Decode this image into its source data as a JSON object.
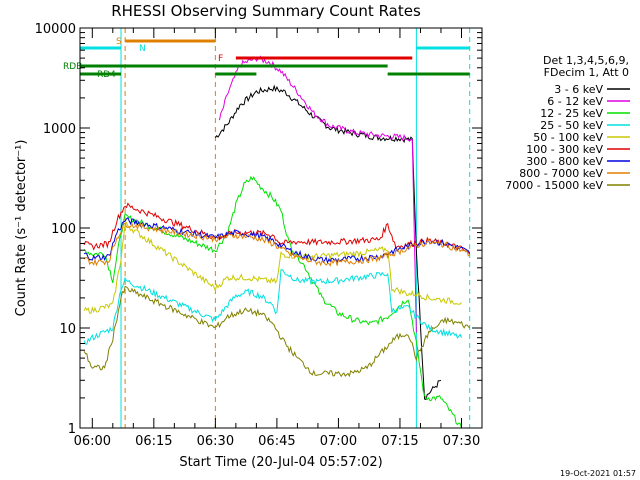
{
  "chart_data": {
    "type": "line",
    "title": "RHESSI Observing Summary Count Rates",
    "xlabel": "Start Time (20-Jul-04 05:57:02)",
    "ylabel": "Count Rate (s⁻¹ detector⁻¹)",
    "x_range_minutes": [
      "05:57",
      "07:35"
    ],
    "ylim": [
      1,
      10000
    ],
    "y_scale": "log",
    "x_ticks": [
      "06:00",
      "06:15",
      "06:30",
      "06:45",
      "07:00",
      "07:15",
      "07:30"
    ],
    "y_ticks": [
      "1",
      "10",
      "100",
      "1000",
      "10000"
    ],
    "legend": {
      "placement": "right",
      "header": [
        "Det 1,3,4,5,6,9,",
        "FDecim 1, Att 0"
      ],
      "entries": [
        {
          "label": "3 - 6 keV",
          "color": "#000000"
        },
        {
          "label": "6 - 12 keV",
          "color": "#e000e0"
        },
        {
          "label": "12 - 25 keV",
          "color": "#00e000"
        },
        {
          "label": "25 - 50 keV",
          "color": "#00e0e0"
        },
        {
          "label": "50 - 100 keV",
          "color": "#c8c800"
        },
        {
          "label": "100 - 300 keV",
          "color": "#e00000"
        },
        {
          "label": "300 - 800 keV",
          "color": "#0000e0"
        },
        {
          "label": "800 - 7000 keV",
          "color": "#e08000"
        },
        {
          "label": "7000 - 15000 keV",
          "color": "#808000"
        }
      ]
    },
    "status_bars": [
      {
        "label": "S",
        "color": "#e08000",
        "intervals": [
          [
            "06:08",
            "06:30"
          ]
        ]
      },
      {
        "label": "N",
        "color": "#00e0e0",
        "intervals": [
          [
            "05:57",
            "06:07"
          ],
          [
            "07:19",
            "07:32"
          ]
        ]
      },
      {
        "label": "F",
        "color": "#e00000",
        "intervals": [
          [
            "06:35",
            "07:18"
          ]
        ]
      },
      {
        "label": "RDB",
        "color": "#008000",
        "intervals": [
          [
            "05:57",
            "06:30"
          ],
          [
            "06:30",
            "07:12"
          ]
        ]
      },
      {
        "label": "RD4",
        "color": "#008000",
        "intervals": [
          [
            "05:57",
            "06:07"
          ],
          [
            "06:30",
            "06:40"
          ],
          [
            "07:12",
            "07:32"
          ]
        ]
      }
    ],
    "vertical_markers": [
      {
        "time": "06:07",
        "color": "#00e0e0",
        "style": "solid"
      },
      {
        "time": "06:08",
        "color": "#e08000",
        "style": "dashed"
      },
      {
        "time": "06:30",
        "color": "#e08000",
        "style": "dashed"
      },
      {
        "time": "07:19",
        "color": "#00e0e0",
        "style": "solid"
      },
      {
        "time": "07:32",
        "color": "#00e0e0",
        "style": "dashed"
      }
    ],
    "series": [
      {
        "name": "3 - 6 keV",
        "color": "#000000",
        "points": [
          [
            "06:30",
            800
          ],
          [
            "06:33",
            1100
          ],
          [
            "06:36",
            1700
          ],
          [
            "06:40",
            2300
          ],
          [
            "06:44",
            2500
          ],
          [
            "06:47",
            2300
          ],
          [
            "06:50",
            1800
          ],
          [
            "06:54",
            1300
          ],
          [
            "06:58",
            1000
          ],
          [
            "07:04",
            880
          ],
          [
            "07:10",
            800
          ],
          [
            "07:15",
            790
          ],
          [
            "07:18",
            760
          ],
          [
            "07:19",
            60
          ],
          [
            "07:21",
            2
          ],
          [
            "07:25",
            3
          ]
        ]
      },
      {
        "name": "6 - 12 keV",
        "color": "#e000e0",
        "points": [
          [
            "06:31",
            1200
          ],
          [
            "06:33",
            2200
          ],
          [
            "06:36",
            4300
          ],
          [
            "06:40",
            5000
          ],
          [
            "06:43",
            4600
          ],
          [
            "06:46",
            3700
          ],
          [
            "06:50",
            2300
          ],
          [
            "06:54",
            1400
          ],
          [
            "06:58",
            1050
          ],
          [
            "07:04",
            900
          ],
          [
            "07:10",
            840
          ],
          [
            "07:15",
            810
          ],
          [
            "07:18",
            780
          ],
          [
            "07:19",
            9
          ]
        ]
      },
      {
        "name": "12 - 25 keV",
        "color": "#00e000",
        "points": [
          [
            "05:58",
            60
          ],
          [
            "06:00",
            55
          ],
          [
            "06:03",
            56
          ],
          [
            "06:05",
            30
          ],
          [
            "06:07",
            90
          ],
          [
            "06:08",
            130
          ],
          [
            "06:30",
            60
          ],
          [
            "06:33",
            90
          ],
          [
            "06:35",
            170
          ],
          [
            "06:37",
            270
          ],
          [
            "06:39",
            320
          ],
          [
            "06:41",
            260
          ],
          [
            "06:44",
            200
          ],
          [
            "06:46",
            150
          ],
          [
            "06:48",
            70
          ],
          [
            "06:52",
            40
          ],
          [
            "06:56",
            20
          ],
          [
            "07:00",
            14
          ],
          [
            "07:04",
            12
          ],
          [
            "07:08",
            11
          ],
          [
            "07:12",
            13
          ],
          [
            "07:15",
            17
          ],
          [
            "07:17",
            20
          ],
          [
            "07:19",
            7
          ],
          [
            "07:21",
            2
          ],
          [
            "07:25",
            2
          ],
          [
            "07:30",
            1
          ]
        ]
      },
      {
        "name": "25 - 50 keV",
        "color": "#00e0e0",
        "points": [
          [
            "05:58",
            7
          ],
          [
            "06:00",
            8
          ],
          [
            "06:05",
            10
          ],
          [
            "06:07",
            25
          ],
          [
            "06:08",
            30
          ],
          [
            "06:30",
            12
          ],
          [
            "06:33",
            17
          ],
          [
            "06:35",
            21
          ],
          [
            "06:38",
            23
          ],
          [
            "06:41",
            21
          ],
          [
            "06:44",
            17
          ],
          [
            "06:45",
            14
          ],
          [
            "06:46",
            38
          ],
          [
            "06:50",
            30
          ],
          [
            "06:55",
            29
          ],
          [
            "07:00",
            30
          ],
          [
            "07:05",
            32
          ],
          [
            "07:10",
            34
          ],
          [
            "07:12",
            35
          ],
          [
            "07:13",
            15
          ],
          [
            "07:17",
            16
          ],
          [
            "07:19",
            13
          ],
          [
            "07:22",
            10
          ],
          [
            "07:26",
            9
          ],
          [
            "07:30",
            8
          ]
        ]
      },
      {
        "name": "50 - 100 keV",
        "color": "#c8c800",
        "points": [
          [
            "05:58",
            15
          ],
          [
            "06:00",
            15
          ],
          [
            "06:05",
            17
          ],
          [
            "06:07",
            50
          ],
          [
            "06:08",
            110
          ],
          [
            "06:30",
            25
          ],
          [
            "06:33",
            32
          ],
          [
            "06:38",
            32
          ],
          [
            "06:42",
            30
          ],
          [
            "06:45",
            29
          ],
          [
            "06:46",
            55
          ],
          [
            "06:50",
            52
          ],
          [
            "06:55",
            52
          ],
          [
            "07:00",
            54
          ],
          [
            "07:05",
            56
          ],
          [
            "07:10",
            60
          ],
          [
            "07:12",
            62
          ],
          [
            "07:13",
            25
          ],
          [
            "07:17",
            22
          ],
          [
            "07:19",
            22
          ],
          [
            "07:22",
            20
          ],
          [
            "07:26",
            19
          ],
          [
            "07:30",
            18
          ]
        ]
      },
      {
        "name": "100 - 300 keV",
        "color": "#e00000",
        "points": [
          [
            "05:58",
            70
          ],
          [
            "06:00",
            65
          ],
          [
            "06:04",
            70
          ],
          [
            "06:06",
            120
          ],
          [
            "06:08",
            170
          ],
          [
            "06:30",
            80
          ],
          [
            "06:35",
            90
          ],
          [
            "06:40",
            90
          ],
          [
            "06:44",
            85
          ],
          [
            "06:46",
            70
          ],
          [
            "06:50",
            73
          ],
          [
            "06:55",
            72
          ],
          [
            "07:00",
            73
          ],
          [
            "07:05",
            75
          ],
          [
            "07:10",
            77
          ],
          [
            "07:12",
            110
          ],
          [
            "07:14",
            65
          ],
          [
            "07:18",
            70
          ],
          [
            "07:22",
            75
          ],
          [
            "07:26",
            70
          ],
          [
            "07:30",
            62
          ],
          [
            "07:32",
            55
          ]
        ]
      },
      {
        "name": "300 - 800 keV",
        "color": "#0000e0",
        "points": [
          [
            "05:58",
            55
          ],
          [
            "06:00",
            50
          ],
          [
            "06:04",
            52
          ],
          [
            "06:06",
            90
          ],
          [
            "06:08",
            120
          ],
          [
            "06:30",
            80
          ],
          [
            "06:35",
            90
          ],
          [
            "06:40",
            85
          ],
          [
            "06:44",
            75
          ],
          [
            "06:48",
            60
          ],
          [
            "06:52",
            52
          ],
          [
            "06:56",
            48
          ],
          [
            "07:00",
            48
          ],
          [
            "07:05",
            50
          ],
          [
            "07:10",
            52
          ],
          [
            "07:14",
            60
          ],
          [
            "07:18",
            68
          ],
          [
            "07:22",
            75
          ],
          [
            "07:26",
            70
          ],
          [
            "07:30",
            62
          ],
          [
            "07:32",
            56
          ]
        ]
      },
      {
        "name": "800 - 7000 keV",
        "color": "#e08000",
        "points": [
          [
            "05:58",
            50
          ],
          [
            "06:00",
            45
          ],
          [
            "06:04",
            47
          ],
          [
            "06:06",
            80
          ],
          [
            "06:08",
            110
          ],
          [
            "06:30",
            78
          ],
          [
            "06:35",
            85
          ],
          [
            "06:40",
            80
          ],
          [
            "06:44",
            70
          ],
          [
            "06:48",
            55
          ],
          [
            "06:52",
            48
          ],
          [
            "06:56",
            45
          ],
          [
            "07:00",
            45
          ],
          [
            "07:05",
            47
          ],
          [
            "07:10",
            50
          ],
          [
            "07:14",
            57
          ],
          [
            "07:18",
            65
          ],
          [
            "07:22",
            72
          ],
          [
            "07:26",
            68
          ],
          [
            "07:30",
            60
          ],
          [
            "07:32",
            54
          ]
        ]
      },
      {
        "name": "7000 - 15000 keV",
        "color": "#808000",
        "points": [
          [
            "05:58",
            6
          ],
          [
            "06:00",
            4
          ],
          [
            "06:03",
            4
          ],
          [
            "06:05",
            8
          ],
          [
            "06:07",
            20
          ],
          [
            "06:08",
            25
          ],
          [
            "06:30",
            10
          ],
          [
            "06:33",
            13
          ],
          [
            "06:37",
            15
          ],
          [
            "06:41",
            14
          ],
          [
            "06:44",
            11
          ],
          [
            "06:47",
            7
          ],
          [
            "06:50",
            5
          ],
          [
            "06:54",
            3.5
          ],
          [
            "06:58",
            3.5
          ],
          [
            "07:03",
            3.5
          ],
          [
            "07:07",
            4
          ],
          [
            "07:11",
            6
          ],
          [
            "07:14",
            8
          ],
          [
            "07:17",
            9
          ],
          [
            "07:19",
            5
          ],
          [
            "07:22",
            9
          ],
          [
            "07:26",
            12
          ],
          [
            "07:30",
            11
          ],
          [
            "07:32",
            10
          ]
        ]
      }
    ]
  },
  "footer": {
    "timestamp": "19-Oct-2021 01:57"
  }
}
